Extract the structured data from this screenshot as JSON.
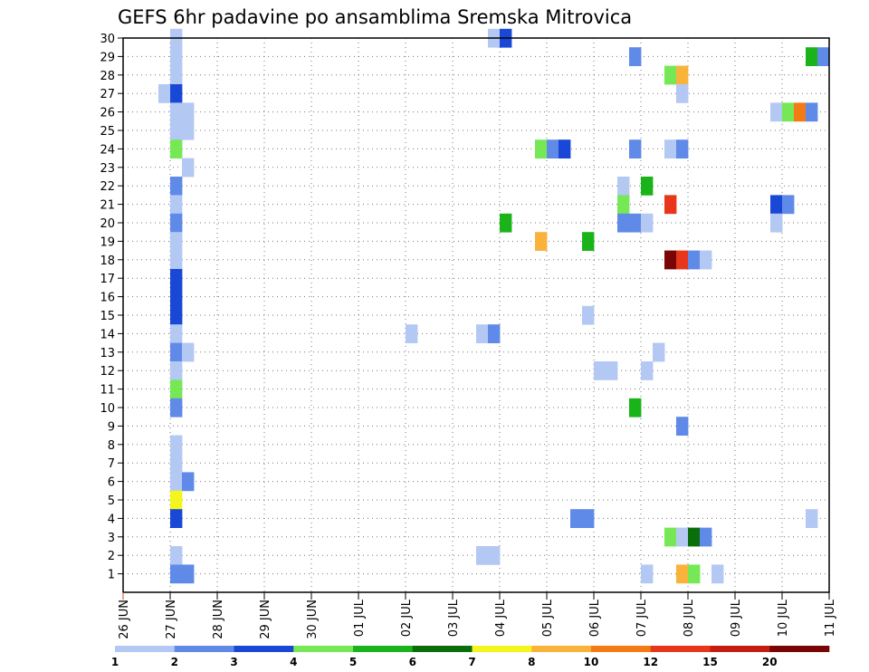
{
  "chart_data": {
    "type": "heatmap",
    "title": "GEFS 6hr padavine po ansamblima Sremska Mitrovica",
    "xlabel": "",
    "ylabel": "",
    "x_tick_labels": [
      "26 JUN",
      "27 JUN",
      "28 JUN",
      "29 JUN",
      "30 JUN",
      "01 JUL",
      "02 JUL",
      "03 JUL",
      "04 JUL",
      "05 JUL",
      "06 JUL",
      "07 JUL",
      "08 JUL",
      "09 JUL",
      "10 JUL",
      "11 JUL"
    ],
    "y_tick_labels": [
      "1",
      "2",
      "3",
      "4",
      "5",
      "6",
      "7",
      "8",
      "9",
      "10",
      "11",
      "12",
      "13",
      "14",
      "15",
      "16",
      "17",
      "18",
      "19",
      "20",
      "21",
      "22",
      "23",
      "24",
      "25",
      "26",
      "27",
      "28",
      "29",
      "30"
    ],
    "x_range_days": [
      0,
      15
    ],
    "y_range": [
      0,
      30
    ],
    "step_hours": 6,
    "grid": true,
    "legend_placement": "bottom",
    "colorbar": {
      "levels": [
        {
          "label": "1",
          "color": "#b4c8f4"
        },
        {
          "label": "2",
          "color": "#5f8ae8"
        },
        {
          "label": "3",
          "color": "#1947d6"
        },
        {
          "label": "4",
          "color": "#76e856"
        },
        {
          "label": "5",
          "color": "#1ab41a"
        },
        {
          "label": "6",
          "color": "#0a6e0a"
        },
        {
          "label": "7",
          "color": "#f5f51e"
        },
        {
          "label": "8",
          "color": "#f9b23a"
        },
        {
          "label": "10",
          "color": "#f47b14"
        },
        {
          "label": "12",
          "color": "#e8361a"
        },
        {
          "label": "15",
          "color": "#c41e10"
        },
        {
          "label": "20",
          "color": "#7a0505"
        }
      ]
    },
    "cells": [
      {
        "member": 30,
        "day": 1.0,
        "cls": 0
      },
      {
        "member": 30,
        "day": 7.75,
        "cls": 0
      },
      {
        "member": 30,
        "day": 8.0,
        "cls": 2
      },
      {
        "member": 29,
        "day": 1.0,
        "cls": 0
      },
      {
        "member": 29,
        "day": 10.75,
        "cls": 1
      },
      {
        "member": 29,
        "day": 14.5,
        "cls": 4
      },
      {
        "member": 29,
        "day": 14.75,
        "cls": 1
      },
      {
        "member": 28,
        "day": 1.0,
        "cls": 0
      },
      {
        "member": 28,
        "day": 11.5,
        "cls": 3
      },
      {
        "member": 28,
        "day": 11.75,
        "cls": 7
      },
      {
        "member": 27,
        "day": 0.75,
        "cls": 0
      },
      {
        "member": 27,
        "day": 1.0,
        "cls": 2
      },
      {
        "member": 27,
        "day": 11.75,
        "cls": 0
      },
      {
        "member": 26,
        "day": 1.0,
        "cls": 0
      },
      {
        "member": 26,
        "day": 1.25,
        "cls": 0
      },
      {
        "member": 26,
        "day": 13.75,
        "cls": 0
      },
      {
        "member": 26,
        "day": 14.0,
        "cls": 3
      },
      {
        "member": 26,
        "day": 14.25,
        "cls": 8
      },
      {
        "member": 26,
        "day": 14.5,
        "cls": 1
      },
      {
        "member": 25,
        "day": 1.0,
        "cls": 0
      },
      {
        "member": 25,
        "day": 1.25,
        "cls": 0
      },
      {
        "member": 24,
        "day": 1.0,
        "cls": 3
      },
      {
        "member": 24,
        "day": 8.75,
        "cls": 3
      },
      {
        "member": 24,
        "day": 9.0,
        "cls": 1
      },
      {
        "member": 24,
        "day": 9.25,
        "cls": 2
      },
      {
        "member": 24,
        "day": 10.75,
        "cls": 1
      },
      {
        "member": 24,
        "day": 11.5,
        "cls": 0
      },
      {
        "member": 24,
        "day": 11.75,
        "cls": 1
      },
      {
        "member": 23,
        "day": 1.25,
        "cls": 0
      },
      {
        "member": 22,
        "day": 1.0,
        "cls": 1
      },
      {
        "member": 22,
        "day": 10.5,
        "cls": 0
      },
      {
        "member": 22,
        "day": 11.0,
        "cls": 4
      },
      {
        "member": 21,
        "day": 1.0,
        "cls": 0
      },
      {
        "member": 21,
        "day": 10.5,
        "cls": 3
      },
      {
        "member": 21,
        "day": 11.5,
        "cls": 9
      },
      {
        "member": 21,
        "day": 13.75,
        "cls": 2
      },
      {
        "member": 21,
        "day": 14.0,
        "cls": 1
      },
      {
        "member": 20,
        "day": 1.0,
        "cls": 1
      },
      {
        "member": 20,
        "day": 8.0,
        "cls": 4
      },
      {
        "member": 20,
        "day": 10.5,
        "cls": 1
      },
      {
        "member": 20,
        "day": 10.75,
        "cls": 1
      },
      {
        "member": 20,
        "day": 11.0,
        "cls": 0
      },
      {
        "member": 20,
        "day": 13.75,
        "cls": 0
      },
      {
        "member": 19,
        "day": 1.0,
        "cls": 0
      },
      {
        "member": 19,
        "day": 8.75,
        "cls": 7
      },
      {
        "member": 19,
        "day": 9.75,
        "cls": 4
      },
      {
        "member": 18,
        "day": 1.0,
        "cls": 0
      },
      {
        "member": 18,
        "day": 11.5,
        "cls": 11
      },
      {
        "member": 18,
        "day": 11.75,
        "cls": 9
      },
      {
        "member": 18,
        "day": 12.0,
        "cls": 1
      },
      {
        "member": 18,
        "day": 12.25,
        "cls": 0
      },
      {
        "member": 17,
        "day": 1.0,
        "cls": 2
      },
      {
        "member": 16,
        "day": 1.0,
        "cls": 2
      },
      {
        "member": 15,
        "day": 1.0,
        "cls": 2
      },
      {
        "member": 15,
        "day": 9.75,
        "cls": 0
      },
      {
        "member": 14,
        "day": 1.0,
        "cls": 0
      },
      {
        "member": 14,
        "day": 6.0,
        "cls": 0
      },
      {
        "member": 14,
        "day": 7.5,
        "cls": 0
      },
      {
        "member": 14,
        "day": 7.75,
        "cls": 1
      },
      {
        "member": 13,
        "day": 1.0,
        "cls": 1
      },
      {
        "member": 13,
        "day": 1.25,
        "cls": 0
      },
      {
        "member": 13,
        "day": 11.25,
        "cls": 0
      },
      {
        "member": 12,
        "day": 1.0,
        "cls": 0
      },
      {
        "member": 12,
        "day": 10.0,
        "cls": 0
      },
      {
        "member": 12,
        "day": 10.25,
        "cls": 0
      },
      {
        "member": 12,
        "day": 11.0,
        "cls": 0
      },
      {
        "member": 11,
        "day": 1.0,
        "cls": 3
      },
      {
        "member": 10,
        "day": 1.0,
        "cls": 1
      },
      {
        "member": 10,
        "day": 10.75,
        "cls": 4
      },
      {
        "member": 9,
        "day": 11.75,
        "cls": 1
      },
      {
        "member": 8,
        "day": 1.0,
        "cls": 0
      },
      {
        "member": 7,
        "day": 1.0,
        "cls": 0
      },
      {
        "member": 6,
        "day": 1.0,
        "cls": 0
      },
      {
        "member": 6,
        "day": 1.25,
        "cls": 1
      },
      {
        "member": 5,
        "day": 1.0,
        "cls": 6
      },
      {
        "member": 4,
        "day": 1.0,
        "cls": 2
      },
      {
        "member": 4,
        "day": 9.5,
        "cls": 1
      },
      {
        "member": 4,
        "day": 9.75,
        "cls": 1
      },
      {
        "member": 4,
        "day": 14.5,
        "cls": 0
      },
      {
        "member": 3,
        "day": 11.5,
        "cls": 3
      },
      {
        "member": 3,
        "day": 11.75,
        "cls": 0
      },
      {
        "member": 3,
        "day": 12.0,
        "cls": 5
      },
      {
        "member": 3,
        "day": 12.25,
        "cls": 1
      },
      {
        "member": 2,
        "day": 1.0,
        "cls": 0
      },
      {
        "member": 2,
        "day": 7.5,
        "cls": 0
      },
      {
        "member": 2,
        "day": 7.75,
        "cls": 0
      },
      {
        "member": 1,
        "day": 1.0,
        "cls": 1
      },
      {
        "member": 1,
        "day": 1.25,
        "cls": 1
      },
      {
        "member": 1,
        "day": 11.0,
        "cls": 0
      },
      {
        "member": 1,
        "day": 11.75,
        "cls": 7
      },
      {
        "member": 1,
        "day": 12.0,
        "cls": 3
      },
      {
        "member": 1,
        "day": 12.5,
        "cls": 0
      }
    ]
  }
}
